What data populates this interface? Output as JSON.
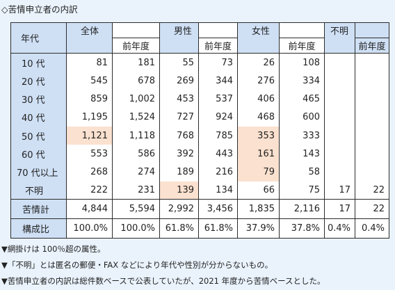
{
  "title": "◇苦情申立者の内訳",
  "header": {
    "age": "年代",
    "total": "全体",
    "male": "男性",
    "female": "女性",
    "unknown": "不明",
    "prev": "前年度"
  },
  "rows": [
    {
      "label": "10 代",
      "total": "81",
      "total_prev": "181",
      "male": "55",
      "male_prev": "73",
      "female": "26",
      "female_prev": "108",
      "unknown": "",
      "unknown_prev": ""
    },
    {
      "label": "20 代",
      "total": "545",
      "total_prev": "678",
      "male": "269",
      "male_prev": "344",
      "female": "276",
      "female_prev": "334",
      "unknown": "",
      "unknown_prev": ""
    },
    {
      "label": "30 代",
      "total": "859",
      "total_prev": "1,002",
      "male": "453",
      "male_prev": "537",
      "female": "406",
      "female_prev": "465",
      "unknown": "",
      "unknown_prev": ""
    },
    {
      "label": "40 代",
      "total": "1,195",
      "total_prev": "1,524",
      "male": "727",
      "male_prev": "924",
      "female": "468",
      "female_prev": "600",
      "unknown": "",
      "unknown_prev": ""
    },
    {
      "label": "50 代",
      "total": "1,121",
      "total_prev": "1,118",
      "male": "768",
      "male_prev": "785",
      "female": "353",
      "female_prev": "333",
      "unknown": "",
      "unknown_prev": ""
    },
    {
      "label": "60 代",
      "total": "553",
      "total_prev": "586",
      "male": "392",
      "male_prev": "443",
      "female": "161",
      "female_prev": "143",
      "unknown": "",
      "unknown_prev": ""
    },
    {
      "label": "70 代以上",
      "total": "268",
      "total_prev": "274",
      "male": "189",
      "male_prev": "216",
      "female": "79",
      "female_prev": "58",
      "unknown": "",
      "unknown_prev": ""
    },
    {
      "label": "不明",
      "total": "222",
      "total_prev": "231",
      "male": "139",
      "male_prev": "134",
      "female": "66",
      "female_prev": "75",
      "unknown": "17",
      "unknown_prev": "22"
    }
  ],
  "total_row": {
    "label": "苦情計",
    "total": "4,844",
    "total_prev": "5,594",
    "male": "2,992",
    "male_prev": "3,456",
    "female": "1,835",
    "female_prev": "2,116",
    "unknown": "17",
    "unknown_prev": "22"
  },
  "ratio_row": {
    "label": "構成比",
    "total": "100.0%",
    "total_prev": "100.0%",
    "male": "61.8%",
    "male_prev": "61.8%",
    "female": "37.9%",
    "female_prev": "37.8%",
    "unknown": "0.4%",
    "unknown_prev": "0.4%"
  },
  "highlight_color": "#fbe1cf",
  "header_color": "#cfe0f5",
  "notes": [
    "▼網掛けは 100％超の属性。",
    "▼「不明」とは匿名の郵便・FAX などにより年代や性別が分からないもの。",
    "▼苦情申立者の内訳は総件数ベースで公表していたが、2021 年度から苦情ベースとした。"
  ]
}
